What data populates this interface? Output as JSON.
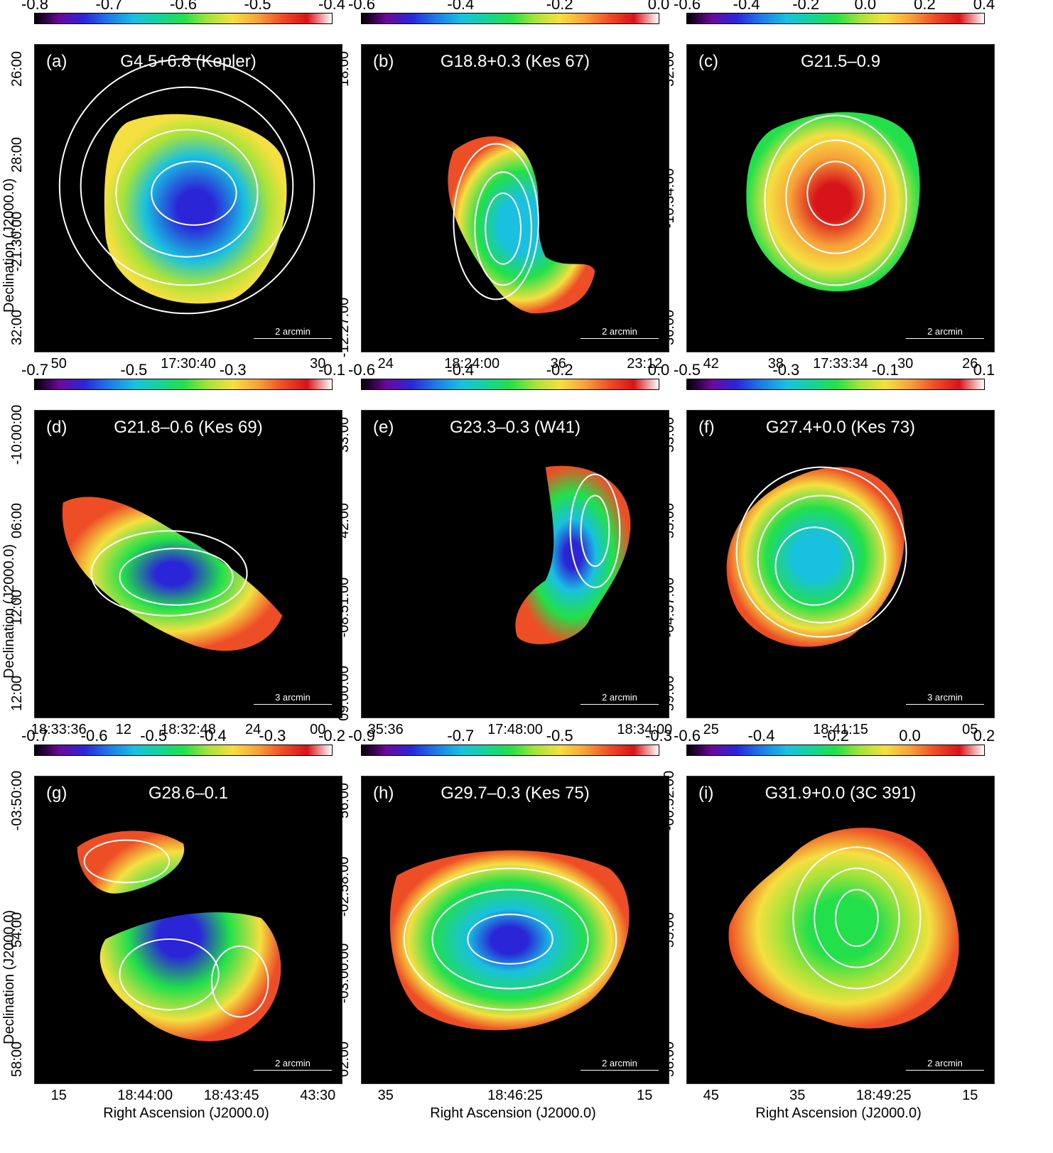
{
  "axis_labels": {
    "declination": "Declination (J2000.0)",
    "right_ascension": "Right Ascension (J2000.0)"
  },
  "gradient": [
    "#000000",
    "#6a0a9a",
    "#2a26d8",
    "#1e7be6",
    "#19c0e0",
    "#15d39b",
    "#22e04a",
    "#a6e33a",
    "#f4e040",
    "#f7a33a",
    "#ee4e26",
    "#d71419",
    "#ffffff"
  ],
  "panels": [
    {
      "label": "(a)",
      "title": "G4.5+6.8  (Kepler)",
      "cbar": [
        "-0.8",
        "-0.7",
        "-0.6",
        "-0.5",
        "-0.4"
      ],
      "xticks": [
        "50",
        "17:30:40",
        "30"
      ],
      "yticks": [
        "26:00",
        "28:00",
        "-21:30:00",
        "32:00"
      ],
      "scale": "2 arcmin",
      "ylabel": true,
      "xlabel": false
    },
    {
      "label": "(b)",
      "title": "G18.8+0.3  (Kes 67)",
      "cbar": [
        "-0.6",
        "-0.4",
        "-0.2",
        "0.0"
      ],
      "xticks": [
        "24",
        "18:24:00",
        "36",
        "23:12"
      ],
      "yticks": [
        "18:00",
        "-12:27:00"
      ],
      "scale": "2 arcmin",
      "ylabel": false,
      "xlabel": false
    },
    {
      "label": "(c)",
      "title": "G21.5–0.9",
      "cbar": [
        "-0.6",
        "-0.4",
        "-0.2",
        "0.0",
        "0.2",
        "0.4"
      ],
      "xticks": [
        "42",
        "38",
        "17:33:34",
        "30",
        "26"
      ],
      "yticks": [
        "32:00",
        "-10:34:00",
        "36:00"
      ],
      "scale": "2 arcmin",
      "ylabel": false,
      "xlabel": false
    },
    {
      "label": "(d)",
      "title": "G21.8–0.6  (Kes 69)",
      "cbar": [
        "-0.7",
        "-0.5",
        "-0.3",
        "-0.1"
      ],
      "xticks": [
        "18:33:36",
        "12",
        "18:32:48",
        "24",
        "00"
      ],
      "yticks": [
        "-10:00:00",
        "06:00",
        "12:00",
        "12:00"
      ],
      "scale": "3 arcmin",
      "ylabel": true,
      "xlabel": false
    },
    {
      "label": "(e)",
      "title": "G23.3–0.3  (W41)",
      "cbar": [
        "-0.6",
        "-0.4",
        "-0.2",
        "0.0"
      ],
      "xticks": [
        "35:36",
        "17:48:00",
        "18:34:00"
      ],
      "yticks": [
        "33:00",
        "42:00",
        "-08:51:00",
        "09:00:00"
      ],
      "scale": "2 arcmin",
      "ylabel": false,
      "xlabel": false
    },
    {
      "label": "(f)",
      "title": "G27.4+0.0  (Kes 73)",
      "cbar": [
        "-0.5",
        "-0.3",
        "-0.1",
        "0.1"
      ],
      "xticks": [
        "25",
        "18:41:15",
        "05"
      ],
      "yticks": [
        "53:00",
        "55:00",
        "-04:57:00",
        "59:00"
      ],
      "scale": "3 arcmin",
      "ylabel": false,
      "xlabel": false
    },
    {
      "label": "(g)",
      "title": "G28.6–0.1",
      "cbar": [
        "-0.7",
        "-0.6",
        "-0.5",
        "-0.4",
        "-0.3",
        "-0.2"
      ],
      "xticks": [
        "15",
        "18:44:00",
        "18:43:45",
        "43:30"
      ],
      "yticks": [
        "-03:50:00",
        "54:00",
        "58:00"
      ],
      "scale": "2 arcmin",
      "ylabel": true,
      "xlabel": true
    },
    {
      "label": "(h)",
      "title": "G29.7–0.3  (Kes 75)",
      "cbar": [
        "-0.9",
        "-0.7",
        "-0.5",
        "-0.3"
      ],
      "xticks": [
        "35",
        "18:46:25",
        "15"
      ],
      "yticks": [
        "56:00",
        "-02:58:00",
        "-03:00:00",
        "02:00"
      ],
      "scale": "2 arcmin",
      "ylabel": false,
      "xlabel": true
    },
    {
      "label": "(i)",
      "title": "G31.9+0.0  (3C 391)",
      "cbar": [
        "-0.6",
        "-0.4",
        "-0.2",
        "0.0",
        "0.2"
      ],
      "xticks": [
        "45",
        "35",
        "18:49:25",
        "15"
      ],
      "yticks": [
        "-00:52:00",
        "55:00",
        "58:00"
      ],
      "scale": "2 arcmin",
      "ylabel": false,
      "xlabel": true
    }
  ]
}
